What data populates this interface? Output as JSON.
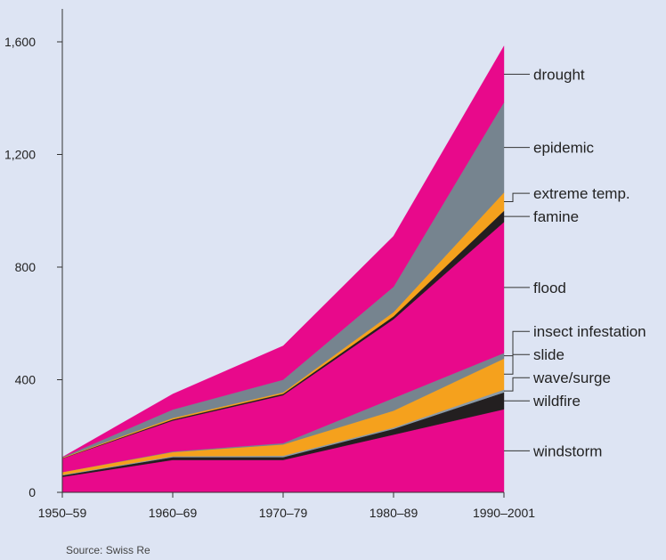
{
  "chart_data": {
    "type": "area",
    "stacked": true,
    "categories": [
      "1950–59",
      "1960–69",
      "1970–79",
      "1980–89",
      "1990–2001"
    ],
    "y_ticks": [
      0,
      400,
      800,
      1200,
      1600
    ],
    "y_tick_labels": [
      "0",
      "400",
      "800",
      "1,200",
      "1,600"
    ],
    "ylim": [
      0,
      1600
    ],
    "grid": false,
    "legend": "direct labels at right end of series",
    "source": "Source: Swiss Re",
    "series": [
      {
        "name": "windstorm",
        "color": "#e8098b",
        "values": [
          55,
          115,
          115,
          205,
          295
        ]
      },
      {
        "name": "wildfire",
        "color": "#231f20",
        "values": [
          5,
          10,
          10,
          20,
          60
        ]
      },
      {
        "name": "wave/surge",
        "color": "#8a9aa8",
        "values": [
          2,
          3,
          5,
          5,
          10
        ]
      },
      {
        "name": "slide",
        "color": "#f5a11d",
        "values": [
          10,
          15,
          40,
          60,
          110
        ]
      },
      {
        "name": "insect infestation",
        "color": "#76848f",
        "values": [
          0,
          2,
          5,
          45,
          20
        ]
      },
      {
        "name": "flood",
        "color": "#e8098b",
        "values": [
          48,
          110,
          170,
          280,
          465
        ]
      },
      {
        "name": "famine",
        "color": "#231f20",
        "values": [
          1,
          4,
          5,
          10,
          40
        ]
      },
      {
        "name": "extreme temp.",
        "color": "#f5a11d",
        "values": [
          2,
          5,
          5,
          15,
          65
        ]
      },
      {
        "name": "epidemic",
        "color": "#76848f",
        "values": [
          2,
          30,
          45,
          90,
          320
        ]
      },
      {
        "name": "drought",
        "color": "#e8098b",
        "values": [
          0,
          55,
          120,
          180,
          200
        ]
      }
    ]
  }
}
